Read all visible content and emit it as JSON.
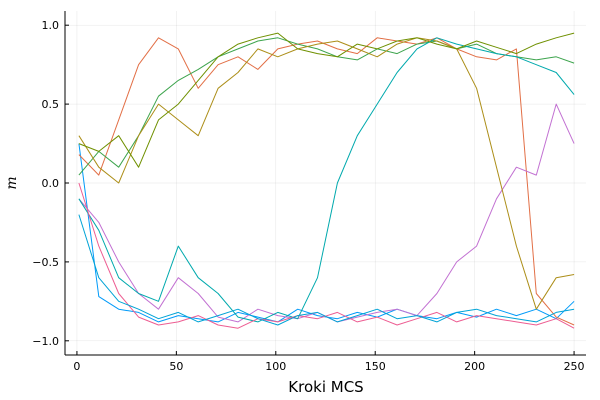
{
  "chart_data": {
    "type": "line",
    "title": "",
    "xlabel": "Kroki MCS",
    "ylabel": "m",
    "xlim": [
      -6,
      256
    ],
    "ylim": [
      -1.09,
      1.09
    ],
    "xticks": [
      0,
      50,
      100,
      150,
      200,
      250
    ],
    "xtick_labels": [
      "0",
      "50",
      "100",
      "150",
      "200",
      "250"
    ],
    "yticks": [
      -1.0,
      -0.5,
      0.0,
      0.5,
      1.0
    ],
    "ytick_labels": [
      "−1.0",
      "−0.5",
      "0.0",
      "0.5",
      "1.0"
    ],
    "grid": true,
    "legend": "none",
    "x": [
      1,
      11,
      21,
      31,
      41,
      51,
      61,
      71,
      81,
      91,
      101,
      111,
      121,
      131,
      141,
      151,
      161,
      171,
      181,
      191,
      201,
      211,
      221,
      231,
      241,
      250
    ],
    "series": [
      {
        "color": "#009af9",
        "values": [
          0.25,
          -0.72,
          -0.8,
          -0.82,
          -0.88,
          -0.84,
          -0.86,
          -0.88,
          -0.82,
          -0.85,
          -0.88,
          -0.8,
          -0.84,
          -0.86,
          -0.82,
          -0.85,
          -0.8,
          -0.84,
          -0.86,
          -0.82,
          -0.85,
          -0.8,
          -0.84,
          -0.8,
          -0.86,
          -0.75
        ]
      },
      {
        "color": "#e26f46",
        "values": [
          0.18,
          0.05,
          0.4,
          0.75,
          0.92,
          0.85,
          0.6,
          0.75,
          0.8,
          0.72,
          0.85,
          0.88,
          0.9,
          0.85,
          0.82,
          0.92,
          0.9,
          0.88,
          0.92,
          0.85,
          0.8,
          0.78,
          0.85,
          -0.7,
          -0.85,
          -0.9
        ]
      },
      {
        "color": "#3da44d",
        "values": [
          0.05,
          0.2,
          0.1,
          0.3,
          0.55,
          0.65,
          0.72,
          0.8,
          0.85,
          0.9,
          0.92,
          0.88,
          0.85,
          0.8,
          0.78,
          0.85,
          0.82,
          0.88,
          0.9,
          0.85,
          0.88,
          0.82,
          0.8,
          0.78,
          0.8,
          0.76
        ]
      },
      {
        "color": "#c271d2",
        "values": [
          -0.1,
          -0.25,
          -0.5,
          -0.7,
          -0.8,
          -0.6,
          -0.7,
          -0.85,
          -0.88,
          -0.8,
          -0.84,
          -0.86,
          -0.82,
          -0.88,
          -0.85,
          -0.82,
          -0.8,
          -0.84,
          -0.7,
          -0.5,
          -0.4,
          -0.1,
          0.1,
          0.05,
          0.5,
          0.25
        ]
      },
      {
        "color": "#ac8e18",
        "values": [
          0.3,
          0.1,
          0.0,
          0.3,
          0.5,
          0.4,
          0.3,
          0.6,
          0.7,
          0.85,
          0.8,
          0.85,
          0.88,
          0.9,
          0.85,
          0.8,
          0.88,
          0.92,
          0.9,
          0.85,
          0.6,
          0.1,
          -0.4,
          -0.8,
          -0.6,
          -0.58
        ]
      },
      {
        "color": "#00a9ad",
        "values": [
          -0.1,
          -0.3,
          -0.6,
          -0.7,
          -0.75,
          -0.4,
          -0.6,
          -0.7,
          -0.85,
          -0.88,
          -0.82,
          -0.86,
          -0.6,
          0.0,
          0.3,
          0.5,
          0.7,
          0.85,
          0.92,
          0.88,
          0.85,
          0.82,
          0.8,
          0.75,
          0.7,
          0.56
        ]
      },
      {
        "color": "#ed5d92",
        "values": [
          0.0,
          -0.4,
          -0.7,
          -0.85,
          -0.9,
          -0.88,
          -0.84,
          -0.9,
          -0.92,
          -0.86,
          -0.88,
          -0.84,
          -0.86,
          -0.82,
          -0.88,
          -0.85,
          -0.9,
          -0.86,
          -0.82,
          -0.88,
          -0.84,
          -0.86,
          -0.88,
          -0.9,
          -0.86,
          -0.92
        ]
      },
      {
        "color": "#6f9000",
        "values": [
          0.25,
          0.2,
          0.3,
          0.1,
          0.4,
          0.5,
          0.65,
          0.8,
          0.88,
          0.92,
          0.95,
          0.85,
          0.82,
          0.8,
          0.88,
          0.85,
          0.9,
          0.92,
          0.88,
          0.85,
          0.9,
          0.86,
          0.82,
          0.88,
          0.92,
          0.95
        ]
      },
      {
        "color": "#00a3d6",
        "values": [
          -0.2,
          -0.6,
          -0.75,
          -0.8,
          -0.86,
          -0.82,
          -0.88,
          -0.84,
          -0.8,
          -0.86,
          -0.9,
          -0.84,
          -0.82,
          -0.88,
          -0.84,
          -0.8,
          -0.86,
          -0.84,
          -0.88,
          -0.82,
          -0.8,
          -0.84,
          -0.86,
          -0.88,
          -0.82,
          -0.8
        ]
      }
    ]
  }
}
